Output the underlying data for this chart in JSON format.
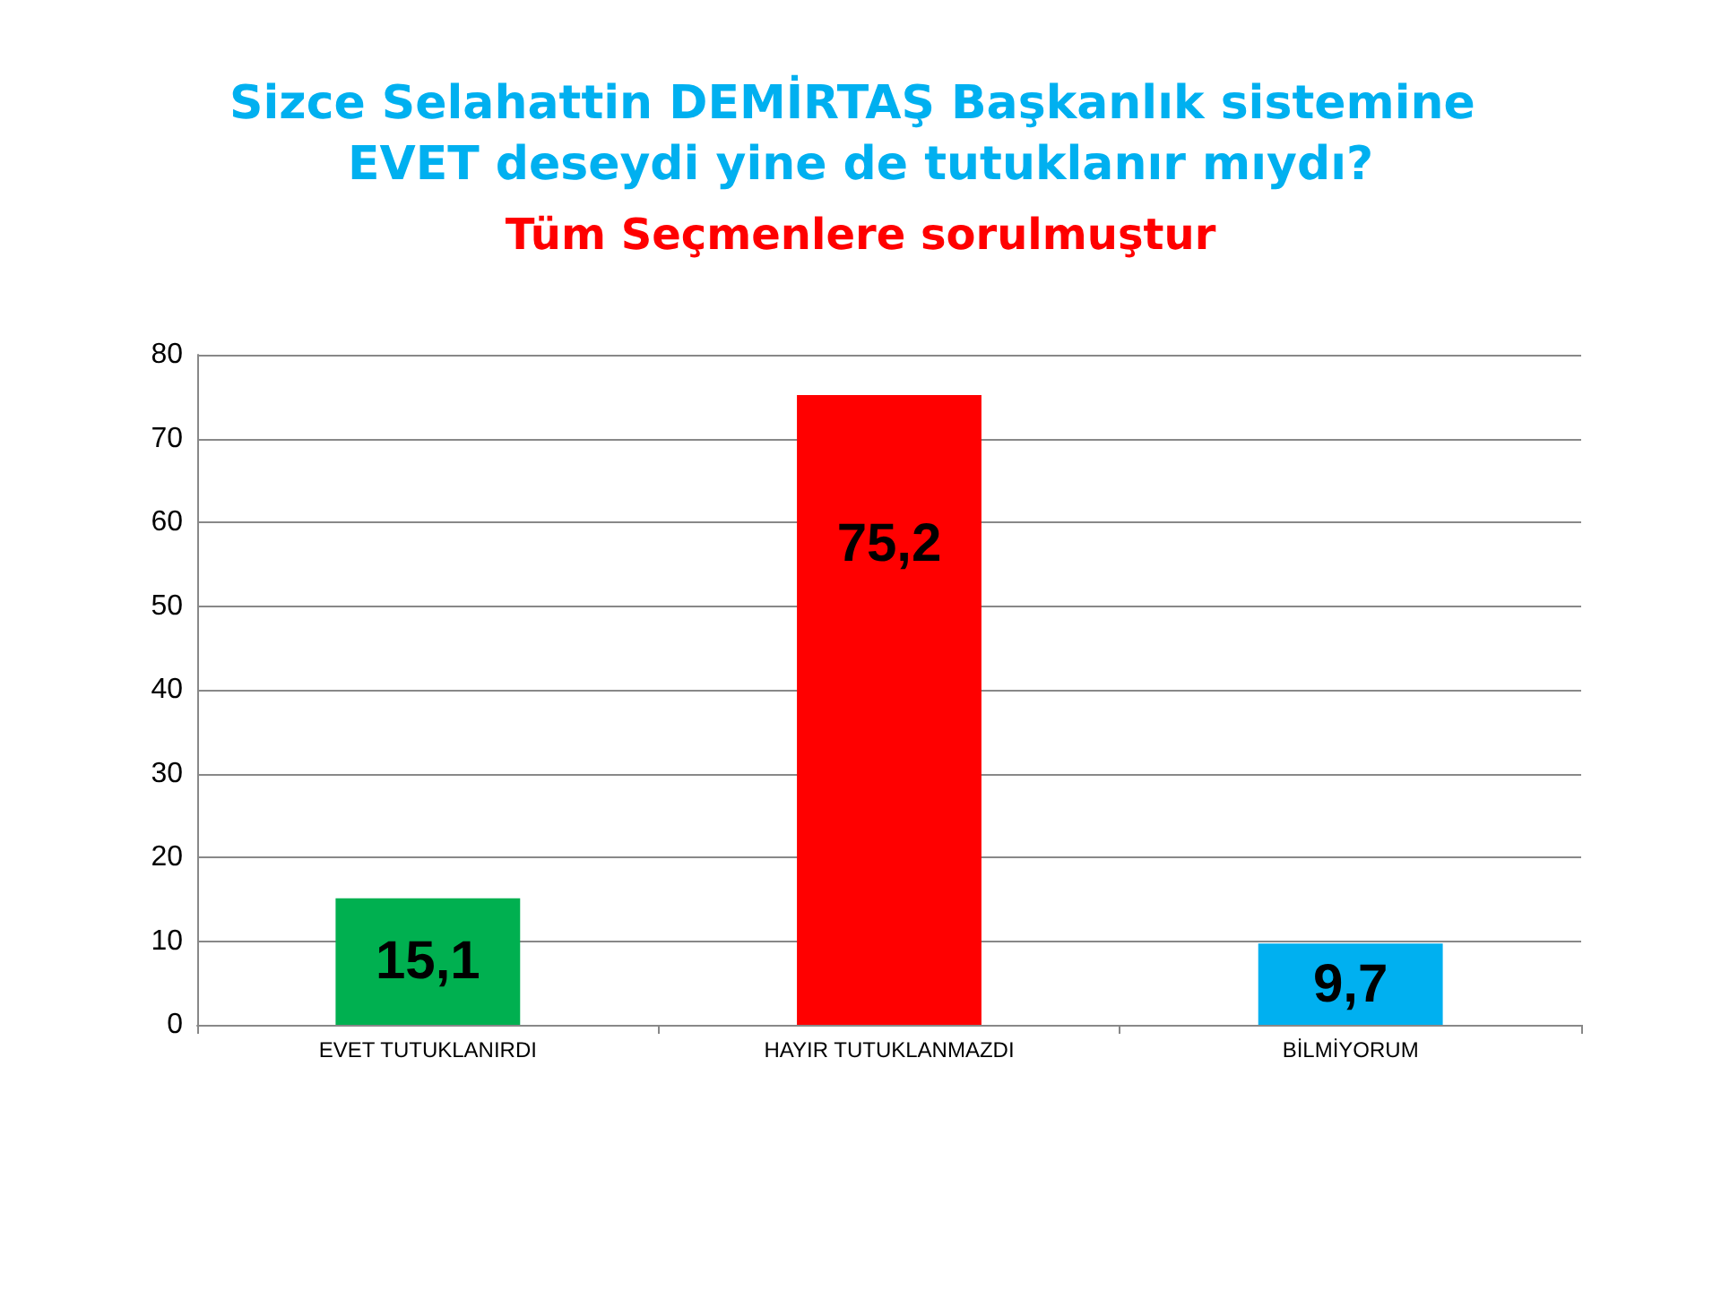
{
  "chart_data": {
    "type": "bar",
    "title": "Sizce Selahattin DEMİRTAŞ Başkanlık sistemine EVET deseydi yine de tutuklanır mıydı?",
    "subtitle": "Tüm Seçmenlere sorulmuştur",
    "categories": [
      "EVET TUTUKLANIRDI",
      "HAYIR TUTUKLANMAZDI",
      "BİLMİYORUM"
    ],
    "values": [
      15.1,
      75.2,
      9.7
    ],
    "colors": [
      "#00b050",
      "#ff0000",
      "#00b0f0"
    ],
    "value_labels": [
      "15,1",
      "75,2",
      "9,7"
    ],
    "ylim": [
      0,
      80
    ],
    "yticks": [
      0,
      10,
      20,
      30,
      40,
      50,
      60,
      70,
      80
    ],
    "grid": "y"
  }
}
